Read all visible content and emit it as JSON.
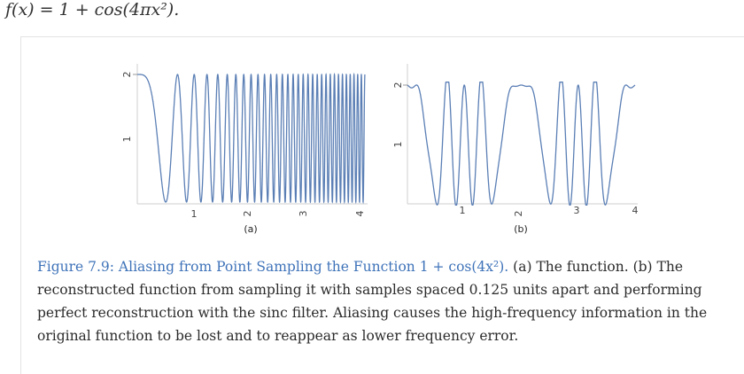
{
  "header": {
    "equation": "f(x) = 1 + cos(4πx²)."
  },
  "figure": {
    "caption_label": "Figure 7.9: Aliasing from Point Sampling the Function 1 + cos(4x²).",
    "caption_body": " (a) The function. (b) The reconstructed function from sampling it with samples spaced 0.125 units apart and performing perfect reconstruction with the sinc filter. Aliasing causes the high-frequency information in the original function to be lost and to reappear as lower frequency error."
  },
  "colors": {
    "curve": "#5b7fb5",
    "axis": "#cfcfcf",
    "caption_label": "#3f73b9"
  },
  "chart_data": [
    {
      "type": "line",
      "panel_label": "(a)",
      "function": "1 + cos(4πx²)",
      "xlim": [
        0,
        4
      ],
      "ylim": [
        0,
        2
      ],
      "x_ticks": [
        "1",
        "2",
        "3",
        "4"
      ],
      "y_ticks": [
        "1",
        "2"
      ],
      "grid": false
    },
    {
      "type": "line",
      "panel_label": "(b)",
      "function": "sinc reconstruction of 1 + cos(4πx²) sampled every 0.125",
      "sample_spacing": 0.125,
      "xlim": [
        0,
        4
      ],
      "ylim": [
        0,
        2
      ],
      "x_ticks": [
        "1",
        "2",
        "3",
        "4"
      ],
      "y_ticks": [
        "1",
        "2"
      ],
      "grid": false
    }
  ]
}
